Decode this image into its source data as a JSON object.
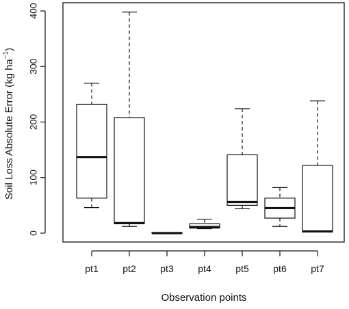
{
  "chart_data": {
    "type": "boxplot",
    "title": "",
    "xlabel": "Observation points",
    "ylabel_main": "Soil Loss Absolute Error (kg  ha",
    "ylabel_sup": "−1",
    "ylabel_close": ")",
    "ylim": [
      -10,
      410
    ],
    "yticks": [
      0,
      100,
      200,
      300,
      400
    ],
    "grid": false,
    "categories": [
      "pt1",
      "pt2",
      "pt3",
      "pt4",
      "pt5",
      "pt6",
      "pt7"
    ],
    "boxes": [
      {
        "label": "pt1",
        "min": 46,
        "q1": 63,
        "median": 137,
        "q3": 232,
        "max": 270
      },
      {
        "label": "pt2",
        "min": 12,
        "q1": 17,
        "median": 18,
        "q3": 208,
        "max": 398
      },
      {
        "label": "pt3",
        "min": 0,
        "q1": 0,
        "median": 0,
        "q3": 1,
        "max": 1
      },
      {
        "label": "pt4",
        "min": 8,
        "q1": 9,
        "median": 11,
        "q3": 17,
        "max": 25
      },
      {
        "label": "pt5",
        "min": 44,
        "q1": 50,
        "median": 56,
        "q3": 141,
        "max": 224
      },
      {
        "label": "pt6",
        "min": 12,
        "q1": 27,
        "median": 45,
        "q3": 63,
        "max": 82
      },
      {
        "label": "pt7",
        "min": 2,
        "q1": 2,
        "median": 3,
        "q3": 122,
        "max": 238
      }
    ],
    "colors": {
      "stroke": "#111111",
      "box_fill": "#ffffff"
    }
  }
}
